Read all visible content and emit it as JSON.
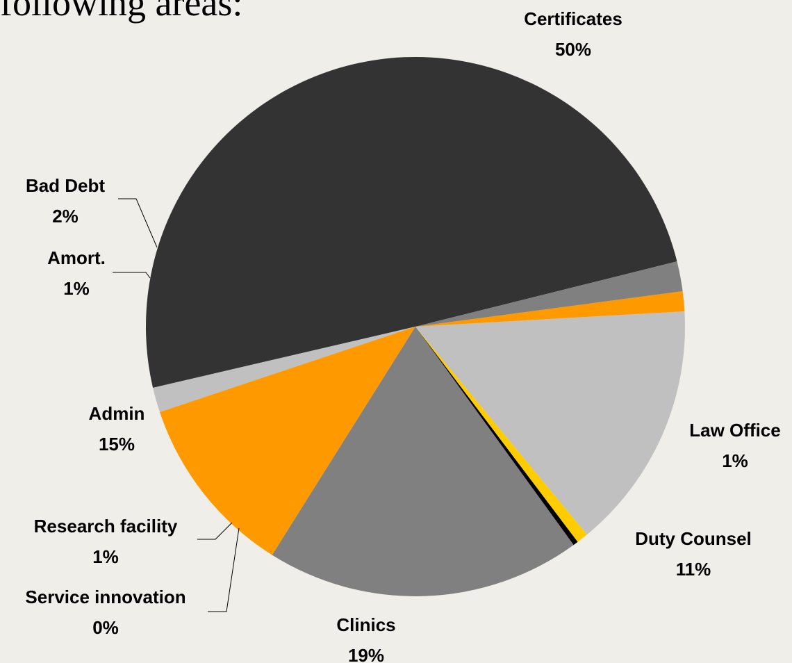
{
  "heading": "following areas:",
  "chart_data": {
    "type": "pie",
    "title": "",
    "start_angle_deg": 14,
    "slices": [
      {
        "label": "Certificates",
        "value": 50,
        "pct_label": "50%",
        "color": "#333333"
      },
      {
        "label": "Law Office",
        "value": 1.5,
        "pct_label": "1%",
        "color": "#c0c0c0"
      },
      {
        "label": "Duty Counsel",
        "value": 11,
        "pct_label": "11%",
        "color": "#ff9900"
      },
      {
        "label": "Clinics",
        "value": 19,
        "pct_label": "19%",
        "color": "#808080"
      },
      {
        "label": "Service innovation",
        "value": 0.3,
        "pct_label": "0%",
        "color": "#000000"
      },
      {
        "label": "Research facility",
        "value": 0.7,
        "pct_label": "1%",
        "color": "#ffcc00"
      },
      {
        "label": "Admin",
        "value": 15,
        "pct_label": "15%",
        "color": "#c0c0c0"
      },
      {
        "label": "Amort.",
        "value": 1.2,
        "pct_label": "1%",
        "color": "#ff9900"
      },
      {
        "label": "Bad Debt",
        "value": 1.8,
        "pct_label": "2%",
        "color": "#808080"
      }
    ]
  }
}
